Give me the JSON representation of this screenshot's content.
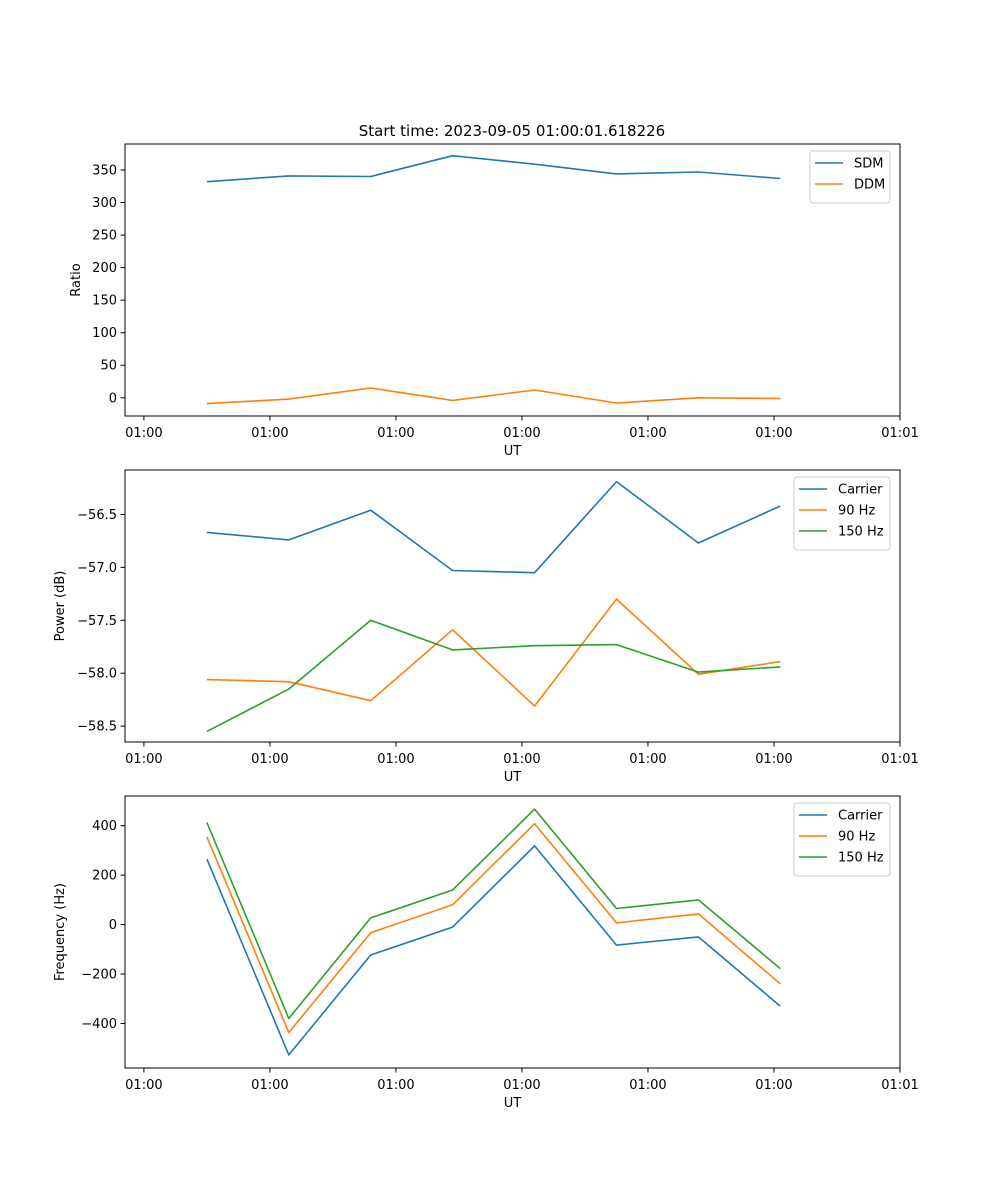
{
  "title": "Start time: 2023-09-05 01:00:01.618226",
  "colors": {
    "blue": "#1f77b4",
    "orange": "#ff7f0e",
    "green": "#2ca02c"
  },
  "chart_data": [
    {
      "type": "line",
      "title": "Start time: 2023-09-05 01:00:01.618226",
      "xlabel": "UT",
      "ylabel": "Ratio",
      "xlim": [
        0,
        12.3
      ],
      "ylim": [
        -28,
        390
      ],
      "x_ticks": [
        0.3,
        2.3,
        4.3,
        6.3,
        8.3,
        10.3,
        12.3
      ],
      "x_tick_labels": [
        "01:00",
        "01:00",
        "01:00",
        "01:00",
        "01:00",
        "01:00",
        "01:01"
      ],
      "y_ticks": [
        0,
        50,
        100,
        150,
        200,
        250,
        300,
        350
      ],
      "y_tick_labels": [
        "0",
        "50",
        "100",
        "150",
        "200",
        "250",
        "300",
        "350"
      ],
      "x": [
        1.3,
        2.6,
        3.9,
        5.2,
        6.5,
        7.8,
        9.1,
        10.4
      ],
      "series": [
        {
          "name": "SDM",
          "color": "#1f77b4",
          "values": [
            332,
            341,
            340,
            372,
            359,
            344,
            347,
            337
          ]
        },
        {
          "name": "DDM",
          "color": "#ff7f0e",
          "values": [
            -9,
            -2,
            15,
            -4,
            12,
            -8,
            0,
            -1
          ]
        }
      ],
      "legend": "top-right",
      "grid": false
    },
    {
      "type": "line",
      "title": "",
      "xlabel": "UT",
      "ylabel": "Power (dB)",
      "xlim": [
        0,
        12.3
      ],
      "ylim": [
        -58.65,
        -56.08
      ],
      "x_ticks": [
        0.3,
        2.3,
        4.3,
        6.3,
        8.3,
        10.3,
        12.3
      ],
      "x_tick_labels": [
        "01:00",
        "01:00",
        "01:00",
        "01:00",
        "01:00",
        "01:00",
        "01:01"
      ],
      "y_ticks": [
        -58.5,
        -58.0,
        -57.5,
        -57.0,
        -56.5
      ],
      "y_tick_labels": [
        "−58.5",
        "−58.0",
        "−57.5",
        "−57.0",
        "−56.5"
      ],
      "x": [
        1.3,
        2.6,
        3.9,
        5.2,
        6.5,
        7.8,
        9.1,
        10.4
      ],
      "series": [
        {
          "name": "Carrier",
          "color": "#1f77b4",
          "values": [
            -56.67,
            -56.74,
            -56.46,
            -57.03,
            -57.05,
            -56.19,
            -56.77,
            -56.42
          ]
        },
        {
          "name": "90 Hz",
          "color": "#ff7f0e",
          "values": [
            -58.06,
            -58.08,
            -58.26,
            -57.59,
            -58.31,
            -57.3,
            -58.01,
            -57.89
          ]
        },
        {
          "name": "150 Hz",
          "color": "#2ca02c",
          "values": [
            -58.55,
            -58.15,
            -57.5,
            -57.78,
            -57.74,
            -57.73,
            -57.99,
            -57.94
          ]
        }
      ],
      "legend": "top-right",
      "grid": false
    },
    {
      "type": "line",
      "title": "",
      "xlabel": "UT",
      "ylabel": "Frequency (Hz)",
      "xlim": [
        0,
        12.3
      ],
      "ylim": [
        -580,
        520
      ],
      "x_ticks": [
        0.3,
        2.3,
        4.3,
        6.3,
        8.3,
        10.3,
        12.3
      ],
      "x_tick_labels": [
        "01:00",
        "01:00",
        "01:00",
        "01:00",
        "01:00",
        "01:00",
        "01:01"
      ],
      "y_ticks": [
        -400,
        -200,
        0,
        200,
        400
      ],
      "y_tick_labels": [
        "−400",
        "−200",
        "0",
        "200",
        "400"
      ],
      "x": [
        1.3,
        2.6,
        3.9,
        5.2,
        6.5,
        7.8,
        9.1,
        10.4
      ],
      "series": [
        {
          "name": "Carrier",
          "color": "#1f77b4",
          "values": [
            265,
            -527,
            -123,
            -10,
            318,
            -83,
            -50,
            -330
          ]
        },
        {
          "name": "90 Hz",
          "color": "#ff7f0e",
          "values": [
            355,
            -437,
            -33,
            80,
            408,
            7,
            43,
            -240
          ]
        },
        {
          "name": "150 Hz",
          "color": "#2ca02c",
          "values": [
            413,
            -380,
            27,
            140,
            467,
            65,
            100,
            -178
          ]
        }
      ],
      "legend": "top-right",
      "grid": false
    }
  ]
}
